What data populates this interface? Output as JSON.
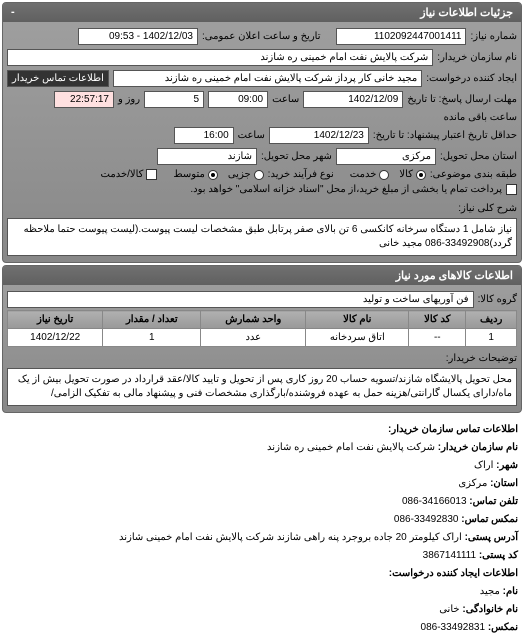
{
  "header": {
    "title": "جزئیات اطلاعات نیاز",
    "collapse": "-"
  },
  "main": {
    "request_no_label": "شماره نیاز:",
    "request_no": "1102092447001411",
    "announce_label": "تاریخ و ساعت اعلان عمومی:",
    "announce_value": "1402/12/03 - 09:53",
    "buyer_label": "نام سازمان خریدار:",
    "buyer_value": "شرکت پالایش نفت امام خمینی ره شازند",
    "requester_label": "ایجاد کننده درخواست:",
    "requester_value": "مجید خانی کار پرداز شرکت پالایش نفت امام خمینی ره شازند",
    "contact_link": "اطلاعات تماس خریدار",
    "deadline_reply_label": "مهلت ارسال پاسخ: تا تاریخ",
    "deadline_reply_date": "1402/12/09",
    "time_label": "ساعت",
    "deadline_reply_time": "09:00",
    "remain_days": "5",
    "remain_days_label": "روز و",
    "remain_time": "22:57:17",
    "remain_label": "ساعت باقی مانده",
    "validity_label": "حداقل تاریخ اعتبار پیشنهاد: تا تاریخ:",
    "validity_date": "1402/12/23",
    "validity_time": "16:00",
    "delivery_label": "استان محل تحویل:",
    "delivery_province": "مرکزی",
    "delivery_city_label": "شهر محل تحویل:",
    "delivery_city": "شازند",
    "deal_type_label": "طبقه بندی موضوعی:",
    "radio_goods": "کالا",
    "radio_service": "خدمت",
    "payment_label": "نوع فرآیند خرید:",
    "radio_small": "جزیی",
    "radio_medium": "متوسط",
    "pay_check_label": "کالا/خدمت",
    "note": "پرداخت تمام یا بخشی از مبلغ خرید،از محل \"اسناد خزانه اسلامی\" خواهد بود."
  },
  "desc": {
    "label": "شرح کلی نیاز:",
    "text": "نیاز شامل 1 دستگاه سرخانه کانکسی 6 تن بالای صفر پرتابل طبق مشخصات لیست پیوست.(لیست پیوست حتما ملاحظه گردد)33492908-086 مجید خانی"
  },
  "goods_header": "اطلاعات کالاهای مورد نیاز",
  "goods": {
    "group_label": "گروه کالا:",
    "group_value": "فن آوریهای ساخت و تولید"
  },
  "table": {
    "columns": [
      "ردیف",
      "کد کالا",
      "نام کالا",
      "واحد شمارش",
      "تعداد / مقدار",
      "تاریخ نیاز"
    ],
    "rows": [
      [
        "1",
        "--",
        "اتاق سردخانه",
        "عدد",
        "1",
        "1402/12/22"
      ]
    ]
  },
  "delivery_note": {
    "label": "توضیحات خریدار:",
    "text": "محل تحویل پالایشگاه شازند/تسویه حساب 20 روز کاری پس از تحویل و تایید کالا/عقد قرارداد در صورت تحویل بیش از یک ماه/دارای یکسال گارانتی/هزینه حمل به عهده فروشنده/بارگذاری مشخصات فنی و پیشنهاد مالی به تفکیک الزامی/"
  },
  "contact": {
    "header": "اطلاعات تماس سازمان خریدار:",
    "org_label": "نام سازمان خریدار:",
    "org": "شرکت پالایش نفت امام خمینی ره شازند",
    "city_label": "شهر:",
    "city": "اراک",
    "province_label": "استان:",
    "province": "مرکزی",
    "phone_label": "تلفن تماس:",
    "phone": "34166013-086",
    "fax_label": "نمکس تماس:",
    "fax": "33492830-086",
    "address_label": "آدرس پستی:",
    "address": "اراک کیلومتر 20 جاده بروجرد پنه راهی شازند شرکت پالایش نفت امام خمینی شازند",
    "postal_label": "کد پستی:",
    "postal": "3867141111",
    "req_header": "اطلاعات ایجاد کننده درخواست:",
    "name_label": "نام:",
    "name": "مجید",
    "lname_label": "نام خانوادگی:",
    "lname": "خانی",
    "req_fax_label": "نمکس:",
    "req_fax": "33492831-086"
  }
}
